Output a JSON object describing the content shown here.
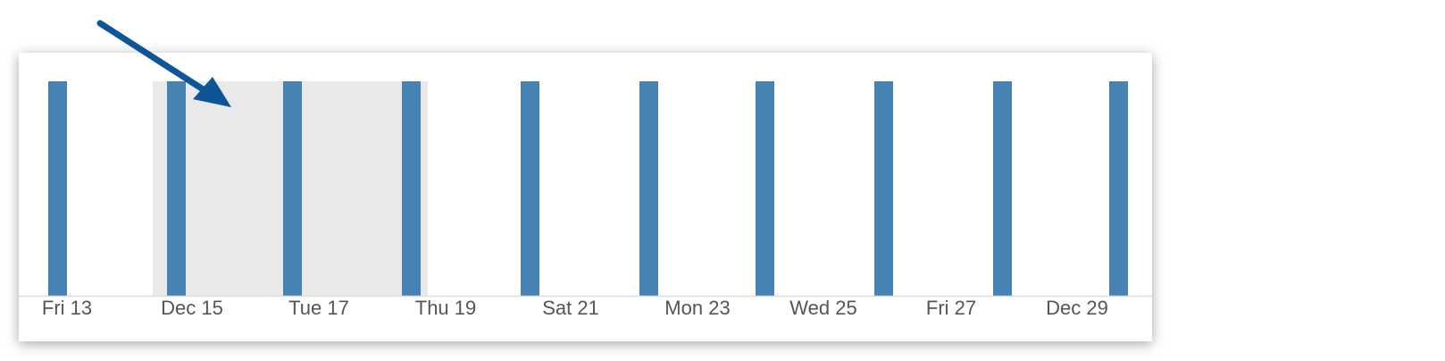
{
  "timeline": {
    "x_labels": [
      "Fri 13",
      "Dec 15",
      "Tue 17",
      "Thu 19",
      "Sat 21",
      "Mon 23",
      "Wed 25",
      "Fri 27",
      "Dec 29"
    ]
  }
}
